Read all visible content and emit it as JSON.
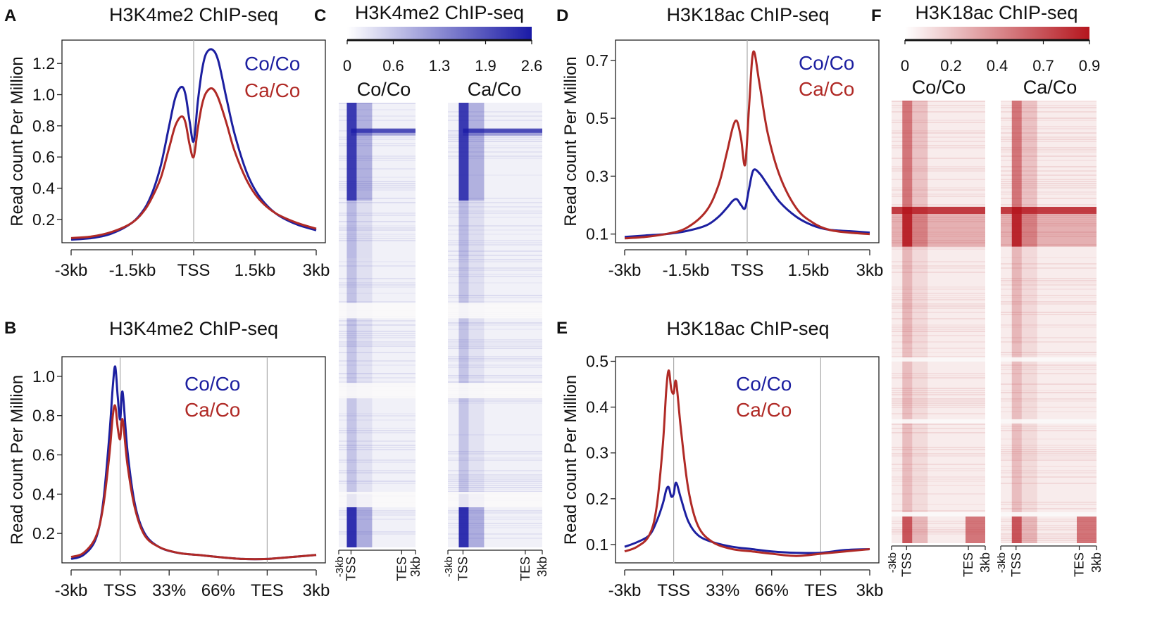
{
  "colors": {
    "co_co": "#1c1fa0",
    "ca_co": "#b02a26",
    "heat_blue": "#1a1aa6",
    "heat_red": "#b5161e"
  },
  "chart_data": [
    {
      "panel": "A",
      "type": "line",
      "title": "H3K4me2 ChIP-seq",
      "ylabel": "Read count Per Million",
      "xlabel": "",
      "x_tick_labels": [
        "-3kb",
        "-1.5kb",
        "TSS",
        "1.5kb",
        "3kb"
      ],
      "x_ticks": [
        -3,
        -1.5,
        0,
        1.5,
        3
      ],
      "xlim": [
        -3,
        3
      ],
      "ylim": [
        0.05,
        1.35
      ],
      "y_ticks": [
        0.2,
        0.4,
        0.6,
        0.8,
        1.0,
        1.2
      ],
      "y_tick_labels": [
        "0.2",
        "0.4",
        "0.6",
        "0.8",
        "1.0",
        "1.2"
      ],
      "vlines": [
        0
      ],
      "legend": [
        "Co/Co",
        "Ca/Co"
      ],
      "series": [
        {
          "name": "Co/Co",
          "x": [
            -3,
            -2.5,
            -2,
            -1.5,
            -1.2,
            -1,
            -0.8,
            -0.6,
            -0.45,
            -0.3,
            -0.2,
            -0.1,
            0,
            0.1,
            0.2,
            0.3,
            0.45,
            0.6,
            0.8,
            1,
            1.3,
            1.6,
            2,
            2.5,
            3
          ],
          "values": [
            0.07,
            0.08,
            0.11,
            0.18,
            0.27,
            0.38,
            0.55,
            0.8,
            0.98,
            1.05,
            1.0,
            0.83,
            0.7,
            0.95,
            1.15,
            1.26,
            1.29,
            1.22,
            0.98,
            0.75,
            0.5,
            0.35,
            0.24,
            0.17,
            0.13
          ]
        },
        {
          "name": "Ca/Co",
          "x": [
            -3,
            -2.5,
            -2,
            -1.5,
            -1.2,
            -1,
            -0.8,
            -0.6,
            -0.45,
            -0.3,
            -0.2,
            -0.1,
            0,
            0.1,
            0.2,
            0.3,
            0.45,
            0.6,
            0.8,
            1,
            1.3,
            1.6,
            2,
            2.5,
            3
          ],
          "values": [
            0.08,
            0.09,
            0.12,
            0.18,
            0.26,
            0.35,
            0.47,
            0.66,
            0.8,
            0.86,
            0.82,
            0.68,
            0.6,
            0.78,
            0.93,
            1.01,
            1.04,
            0.98,
            0.82,
            0.64,
            0.45,
            0.33,
            0.24,
            0.18,
            0.14
          ]
        }
      ]
    },
    {
      "panel": "B",
      "type": "line",
      "title": "H3K4me2 ChIP-seq",
      "ylabel": "Read count Per Million",
      "xlabel": "",
      "x_tick_labels": [
        "-3kb",
        "TSS",
        "33%",
        "66%",
        "TES",
        "3kb"
      ],
      "x_ticks": [
        0,
        1,
        2,
        3,
        4,
        5
      ],
      "xlim": [
        0,
        5
      ],
      "ylim": [
        0.05,
        1.1
      ],
      "y_ticks": [
        0.2,
        0.4,
        0.6,
        0.8,
        1.0
      ],
      "y_tick_labels": [
        "0.2",
        "0.4",
        "0.6",
        "0.8",
        "1.0"
      ],
      "vlines": [
        1,
        4
      ],
      "legend": [
        "Co/Co",
        "Ca/Co"
      ],
      "series": [
        {
          "name": "Co/Co",
          "x": [
            0,
            0.25,
            0.5,
            0.65,
            0.78,
            0.85,
            0.9,
            0.95,
            1.0,
            1.05,
            1.15,
            1.3,
            1.5,
            1.8,
            2.2,
            2.6,
            3.0,
            3.5,
            4.0,
            4.5,
            5.0
          ],
          "values": [
            0.07,
            0.09,
            0.17,
            0.35,
            0.7,
            0.95,
            1.05,
            0.9,
            0.78,
            0.92,
            0.62,
            0.35,
            0.2,
            0.13,
            0.1,
            0.09,
            0.08,
            0.07,
            0.07,
            0.08,
            0.09
          ]
        },
        {
          "name": "Ca/Co",
          "x": [
            0,
            0.25,
            0.5,
            0.65,
            0.78,
            0.85,
            0.9,
            0.95,
            1.0,
            1.05,
            1.15,
            1.3,
            1.5,
            1.8,
            2.2,
            2.6,
            3.0,
            3.5,
            4.0,
            4.5,
            5.0
          ],
          "values": [
            0.08,
            0.1,
            0.18,
            0.33,
            0.6,
            0.8,
            0.85,
            0.74,
            0.68,
            0.78,
            0.55,
            0.33,
            0.19,
            0.13,
            0.1,
            0.09,
            0.08,
            0.07,
            0.07,
            0.08,
            0.09
          ]
        }
      ]
    },
    {
      "panel": "C",
      "type": "heatmap",
      "title": "H3K4me2 ChIP-seq",
      "colorbar_ticks": [
        "0",
        "0.6",
        "1.3",
        "1.9",
        "2.6"
      ],
      "colorbar_range": [
        0,
        2.6
      ],
      "columns": [
        "Co/Co",
        "Ca/Co"
      ],
      "x_tick_labels": [
        "-3kb",
        "TSS",
        "TES",
        "3kb"
      ]
    },
    {
      "panel": "D",
      "type": "line",
      "title": "H3K18ac ChIP-seq",
      "ylabel": "Read count Per Million",
      "xlabel": "",
      "x_tick_labels": [
        "-3kb",
        "-1.5kb",
        "TSS",
        "1.5kb",
        "3kb"
      ],
      "x_ticks": [
        -3,
        -1.5,
        0,
        1.5,
        3
      ],
      "xlim": [
        -3,
        3
      ],
      "ylim": [
        0.07,
        0.77
      ],
      "y_ticks": [
        0.1,
        0.3,
        0.5,
        0.7
      ],
      "y_tick_labels": [
        "0.1",
        "0.3",
        "0.5",
        "0.7"
      ],
      "vlines": [
        0
      ],
      "legend": [
        "Co/Co",
        "Ca/Co"
      ],
      "series": [
        {
          "name": "Co/Co",
          "x": [
            -3,
            -2.5,
            -2,
            -1.5,
            -1,
            -0.7,
            -0.5,
            -0.35,
            -0.25,
            -0.15,
            -0.05,
            0.05,
            0.15,
            0.3,
            0.5,
            0.8,
            1.2,
            1.6,
            2,
            2.5,
            3
          ],
          "values": [
            0.09,
            0.095,
            0.1,
            0.11,
            0.13,
            0.16,
            0.19,
            0.215,
            0.22,
            0.2,
            0.19,
            0.26,
            0.32,
            0.31,
            0.27,
            0.21,
            0.16,
            0.13,
            0.115,
            0.11,
            0.105
          ]
        },
        {
          "name": "Ca/Co",
          "x": [
            -3,
            -2.5,
            -2,
            -1.5,
            -1,
            -0.7,
            -0.5,
            -0.35,
            -0.25,
            -0.15,
            -0.05,
            0.05,
            0.15,
            0.3,
            0.5,
            0.8,
            1.2,
            1.6,
            2,
            2.5,
            3
          ],
          "values": [
            0.085,
            0.09,
            0.1,
            0.12,
            0.18,
            0.27,
            0.38,
            0.47,
            0.49,
            0.43,
            0.34,
            0.55,
            0.73,
            0.62,
            0.45,
            0.3,
            0.19,
            0.14,
            0.115,
            0.105,
            0.1
          ]
        }
      ]
    },
    {
      "panel": "E",
      "type": "line",
      "title": "H3K18ac ChIP-seq",
      "ylabel": "Read count Per Million",
      "xlabel": "",
      "x_tick_labels": [
        "-3kb",
        "TSS",
        "33%",
        "66%",
        "TES",
        "3kb"
      ],
      "x_ticks": [
        0,
        1,
        2,
        3,
        4,
        5
      ],
      "xlim": [
        0,
        5
      ],
      "ylim": [
        0.06,
        0.51
      ],
      "y_ticks": [
        0.1,
        0.2,
        0.3,
        0.4,
        0.5
      ],
      "y_tick_labels": [
        "0.1",
        "0.2",
        "0.3",
        "0.4",
        "0.5"
      ],
      "vlines": [
        1,
        4
      ],
      "legend": [
        "Co/Co",
        "Ca/Co"
      ],
      "series": [
        {
          "name": "Co/Co",
          "x": [
            0,
            0.25,
            0.5,
            0.65,
            0.78,
            0.85,
            0.9,
            0.95,
            1.0,
            1.05,
            1.15,
            1.3,
            1.5,
            1.8,
            2.2,
            2.6,
            3.0,
            3.5,
            4.0,
            4.5,
            5.0
          ],
          "values": [
            0.095,
            0.105,
            0.12,
            0.15,
            0.19,
            0.22,
            0.225,
            0.205,
            0.21,
            0.235,
            0.2,
            0.15,
            0.12,
            0.105,
            0.095,
            0.09,
            0.085,
            0.082,
            0.082,
            0.088,
            0.09
          ]
        },
        {
          "name": "Ca/Co",
          "x": [
            0,
            0.25,
            0.5,
            0.65,
            0.78,
            0.85,
            0.9,
            0.95,
            1.0,
            1.05,
            1.15,
            1.3,
            1.5,
            1.8,
            2.2,
            2.6,
            3.0,
            3.5,
            4.0,
            4.5,
            5.0
          ],
          "values": [
            0.085,
            0.095,
            0.12,
            0.18,
            0.32,
            0.44,
            0.48,
            0.44,
            0.43,
            0.455,
            0.35,
            0.22,
            0.14,
            0.105,
            0.09,
            0.085,
            0.08,
            0.075,
            0.08,
            0.085,
            0.09
          ]
        }
      ]
    },
    {
      "panel": "F",
      "type": "heatmap",
      "title": "H3K18ac ChIP-seq",
      "colorbar_ticks": [
        "0",
        "0.2",
        "0.4",
        "0.7",
        "0.9"
      ],
      "colorbar_range": [
        0,
        0.9
      ],
      "columns": [
        "Co/Co",
        "Ca/Co"
      ],
      "x_tick_labels": [
        "-3kb",
        "TSS",
        "TES",
        "3kb"
      ]
    }
  ]
}
